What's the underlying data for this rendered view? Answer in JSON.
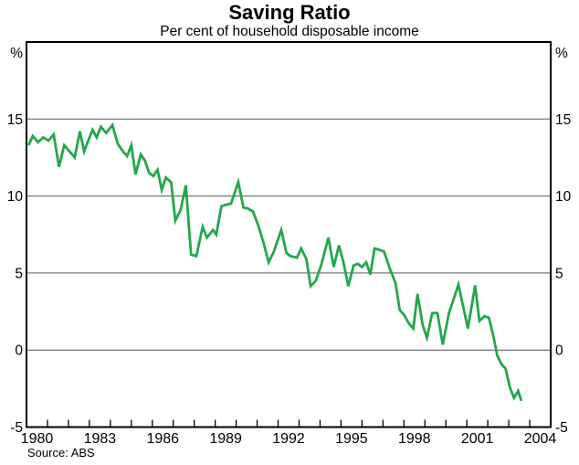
{
  "page": {
    "background": "#ffffff"
  },
  "chart_data": {
    "type": "line",
    "title": "Saving Ratio",
    "subtitle": "Per cent of household disposable income",
    "source": "Source: ABS",
    "unit_label": "%",
    "xlim": [
      1980,
      2005
    ],
    "ylim": [
      -5,
      20
    ],
    "grid": true,
    "legend_position": "none",
    "x_tick_step_years": 1,
    "x_labels": [
      "1980",
      "1983",
      "1986",
      "1989",
      "1992",
      "1995",
      "1998",
      "2001",
      "2004"
    ],
    "y_gridline_values": [
      15,
      10,
      5,
      0
    ],
    "y_tick_labels": [
      "15",
      "10",
      "5",
      "0",
      "-5"
    ],
    "y_tick_values": [
      15,
      10,
      5,
      0,
      -5
    ],
    "line_color": "#22a84a",
    "axis_color": "#000000",
    "gridline_color": "#555555",
    "series": [
      {
        "points": [
          [
            1980.1,
            13.3
          ],
          [
            1980.3,
            13.9
          ],
          [
            1980.55,
            13.5
          ],
          [
            1980.8,
            13.8
          ],
          [
            1981.05,
            13.6
          ],
          [
            1981.3,
            14.0
          ],
          [
            1981.55,
            11.9
          ],
          [
            1981.8,
            13.3
          ],
          [
            1982.05,
            12.9
          ],
          [
            1982.3,
            12.5
          ],
          [
            1982.55,
            14.2
          ],
          [
            1982.75,
            12.9
          ],
          [
            1982.95,
            13.6
          ],
          [
            1983.15,
            14.3
          ],
          [
            1983.35,
            13.8
          ],
          [
            1983.55,
            14.5
          ],
          [
            1983.8,
            14.1
          ],
          [
            1984.1,
            14.6
          ],
          [
            1984.35,
            13.4
          ],
          [
            1984.6,
            12.9
          ],
          [
            1984.8,
            12.6
          ],
          [
            1985.0,
            13.3
          ],
          [
            1985.2,
            11.4
          ],
          [
            1985.45,
            12.7
          ],
          [
            1985.65,
            12.3
          ],
          [
            1985.85,
            11.5
          ],
          [
            1986.05,
            11.3
          ],
          [
            1986.25,
            11.7
          ],
          [
            1986.45,
            10.4
          ],
          [
            1986.65,
            11.2
          ],
          [
            1986.9,
            10.9
          ],
          [
            1987.1,
            8.4
          ],
          [
            1987.35,
            9.1
          ],
          [
            1987.6,
            10.7
          ],
          [
            1987.85,
            6.2
          ],
          [
            1988.1,
            6.1
          ],
          [
            1988.4,
            8.0
          ],
          [
            1988.6,
            7.3
          ],
          [
            1988.9,
            7.8
          ],
          [
            1989.05,
            7.5
          ],
          [
            1989.3,
            9.35
          ],
          [
            1989.55,
            9.45
          ],
          [
            1989.75,
            9.5
          ],
          [
            1990.1,
            10.9
          ],
          [
            1990.35,
            9.25
          ],
          [
            1990.55,
            9.2
          ],
          [
            1990.8,
            9.0
          ],
          [
            1991.05,
            8.1
          ],
          [
            1991.3,
            7.0
          ],
          [
            1991.55,
            5.7
          ],
          [
            1991.8,
            6.4
          ],
          [
            1992.15,
            7.8
          ],
          [
            1992.4,
            6.3
          ],
          [
            1992.6,
            6.1
          ],
          [
            1992.9,
            6.0
          ],
          [
            1993.1,
            6.6
          ],
          [
            1993.35,
            5.9
          ],
          [
            1993.55,
            4.15
          ],
          [
            1993.8,
            4.5
          ],
          [
            1994.05,
            5.5
          ],
          [
            1994.4,
            7.3
          ],
          [
            1994.65,
            5.4
          ],
          [
            1994.9,
            6.8
          ],
          [
            1995.1,
            5.8
          ],
          [
            1995.35,
            4.15
          ],
          [
            1995.6,
            5.5
          ],
          [
            1995.8,
            5.6
          ],
          [
            1996.0,
            5.4
          ],
          [
            1996.2,
            5.7
          ],
          [
            1996.4,
            4.9
          ],
          [
            1996.6,
            6.6
          ],
          [
            1996.85,
            6.5
          ],
          [
            1997.05,
            6.4
          ],
          [
            1997.3,
            5.4
          ],
          [
            1997.6,
            4.35
          ],
          [
            1997.8,
            2.6
          ],
          [
            1998.0,
            2.3
          ],
          [
            1998.25,
            1.7
          ],
          [
            1998.45,
            1.4
          ],
          [
            1998.65,
            3.65
          ],
          [
            1998.9,
            1.6
          ],
          [
            1999.1,
            0.8
          ],
          [
            1999.35,
            2.4
          ],
          [
            1999.6,
            2.4
          ],
          [
            1999.85,
            0.35
          ],
          [
            2000.15,
            2.4
          ],
          [
            2000.6,
            4.25
          ],
          [
            2001.05,
            1.4
          ],
          [
            2001.4,
            4.2
          ],
          [
            2001.6,
            1.9
          ],
          [
            2001.85,
            2.2
          ],
          [
            2002.05,
            2.1
          ],
          [
            2002.25,
            1.0
          ],
          [
            2002.45,
            -0.35
          ],
          [
            2002.65,
            -0.9
          ],
          [
            2002.85,
            -1.2
          ],
          [
            2003.05,
            -2.4
          ],
          [
            2003.25,
            -3.1
          ],
          [
            2003.45,
            -2.65
          ],
          [
            2003.6,
            -3.3
          ]
        ]
      }
    ]
  }
}
